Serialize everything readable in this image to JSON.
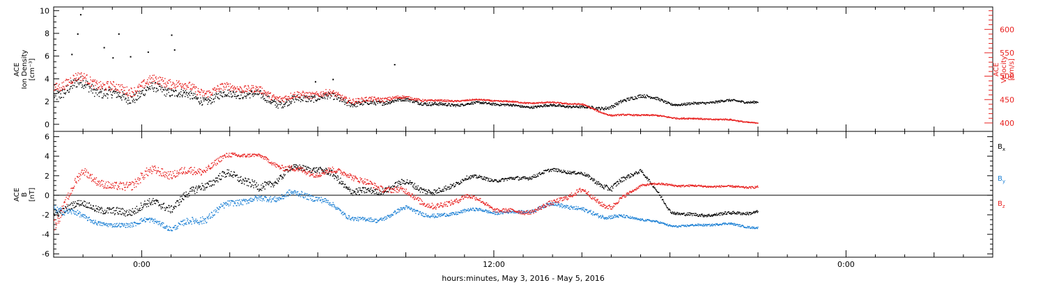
{
  "colors": {
    "black": "#000000",
    "red": "#e8201e",
    "blue": "#1a7fd4"
  },
  "chart_data": [
    {
      "type": "scatter",
      "panel": "top",
      "ylabel_left": [
        "ACE",
        "Ion Density",
        "[cm⁻³]"
      ],
      "ylabel_right": [
        "ACE",
        "Velocity",
        "[km/s]"
      ],
      "ylim_left": [
        -0.5,
        10.2
      ],
      "ylim_right": [
        385,
        645
      ],
      "yticks_left": [
        "0",
        "2",
        "4",
        "6",
        "8",
        "10"
      ],
      "yticks_right": [
        "400",
        "450",
        "500",
        "550",
        "600"
      ],
      "x_unit": "hours since May 3, 2016 00:00",
      "xlim": [
        -3,
        29
      ],
      "series": [
        {
          "color": "black",
          "axis": "left",
          "x": [
            -3,
            -2,
            -1,
            0,
            1,
            2,
            3,
            4,
            5,
            6,
            7,
            8,
            9,
            10,
            11,
            12,
            13,
            14,
            15,
            16,
            17,
            18,
            19,
            20,
            21
          ],
          "y": [
            3.0,
            3.0,
            2.9,
            2.8,
            2.7,
            2.6,
            2.5,
            2.4,
            2.3,
            2.2,
            2.1,
            2.0,
            2.0,
            1.9,
            1.8,
            1.8,
            1.7,
            1.6,
            1.5,
            1.7,
            2.5,
            1.9,
            1.9,
            2.0,
            2.1
          ],
          "spread": [
            1.0,
            1.0,
            0.9,
            0.9,
            0.8,
            0.7,
            0.7,
            0.7,
            0.7,
            0.6,
            0.5,
            0.4,
            0.3,
            0.3,
            0.2,
            0.2,
            0.2,
            0.2,
            0.2,
            0.3,
            0.3,
            0.2,
            0.2,
            0.2,
            0.2
          ],
          "outliers": [
            [
              -2.1,
              9.7
            ],
            [
              -2.2,
              8.0
            ],
            [
              -2.4,
              6.2
            ],
            [
              -0.8,
              8.0
            ],
            [
              -1.3,
              6.8
            ],
            [
              -0.4,
              6.0
            ],
            [
              0.2,
              6.4
            ],
            [
              1.0,
              7.9
            ],
            [
              1.1,
              6.6
            ],
            [
              -1.0,
              5.9
            ],
            [
              8.6,
              5.3
            ],
            [
              6.5,
              4.0
            ],
            [
              5.9,
              3.8
            ]
          ]
        },
        {
          "color": "red",
          "axis": "right",
          "x": [
            -3,
            -2,
            -1,
            0,
            1,
            2,
            3,
            4,
            5,
            6,
            7,
            8,
            9,
            10,
            11,
            12,
            13,
            14,
            15,
            16,
            17,
            18,
            19,
            20,
            21
          ],
          "y": [
            485,
            485,
            482,
            480,
            482,
            478,
            472,
            466,
            462,
            458,
            455,
            453,
            451,
            450,
            449,
            448,
            446,
            443,
            440,
            418,
            417,
            414,
            410,
            406,
            402
          ],
          "spread": [
            20,
            20,
            20,
            20,
            20,
            18,
            16,
            15,
            15,
            14,
            12,
            10,
            6,
            4,
            3,
            3,
            3,
            3,
            3,
            3,
            3,
            3,
            3,
            3,
            2
          ]
        }
      ]
    },
    {
      "type": "scatter",
      "panel": "bottom",
      "ylabel_left": [
        "ACE",
        "B",
        "[nT]"
      ],
      "ylim": [
        -6.2,
        6.4
      ],
      "yticks": [
        "-6",
        "-4",
        "-2",
        "0",
        "2",
        "4",
        "6"
      ],
      "xlim": [
        -3,
        29
      ],
      "xticks": [
        0,
        12,
        24
      ],
      "xtick_labels": [
        "0:00",
        "12:00",
        "0:00"
      ],
      "xlabel": "hours:minutes, May  3, 2016 - May  5, 2016",
      "legend": [
        "Bx",
        "By",
        "Bz"
      ],
      "series": [
        {
          "name": "Bx",
          "color": "black",
          "x": [
            -3,
            -2,
            -1,
            0,
            1,
            2,
            3,
            4,
            5,
            6,
            7,
            8,
            9,
            10,
            11,
            12,
            13,
            14,
            15,
            16,
            17,
            18,
            19,
            20,
            21
          ],
          "y": [
            -1.5,
            -1.2,
            -1.5,
            -1.0,
            -1.5,
            1.5,
            2.0,
            0.5,
            3.0,
            2.5,
            1.0,
            0.5,
            1.0,
            0.5,
            1.8,
            1.5,
            2.0,
            2.5,
            2.2,
            1.0,
            2.5,
            -1.5,
            -2.0,
            -2.0,
            -1.5
          ],
          "spread": [
            0.8,
            0.6,
            0.8,
            0.8,
            0.8,
            0.8,
            0.8,
            0.8,
            0.6,
            0.6,
            0.8,
            0.6,
            0.6,
            0.6,
            0.4,
            0.3,
            0.4,
            0.3,
            0.3,
            0.6,
            0.3,
            0.3,
            0.3,
            0.3,
            0.3
          ]
        },
        {
          "name": "By",
          "color": "blue",
          "x": [
            -3,
            -2,
            -1,
            0,
            1,
            2,
            3,
            4,
            5,
            6,
            7,
            8,
            9,
            10,
            11,
            12,
            13,
            14,
            15,
            16,
            17,
            18,
            19,
            20,
            21
          ],
          "y": [
            -1.0,
            -2.5,
            -3.0,
            -2.5,
            -3.5,
            -2.0,
            -1.0,
            -0.5,
            0.5,
            -0.5,
            -2.0,
            -2.5,
            -1.5,
            -2.0,
            -1.5,
            -1.8,
            -1.5,
            -1.0,
            -1.5,
            -2.0,
            -2.5,
            -3.0,
            -3.0,
            -3.0,
            -3.2
          ],
          "spread": [
            0.8,
            0.5,
            0.4,
            0.5,
            0.5,
            0.8,
            0.6,
            0.6,
            0.6,
            0.6,
            0.4,
            0.4,
            0.4,
            0.4,
            0.3,
            0.3,
            0.3,
            0.4,
            0.4,
            0.4,
            0.2,
            0.2,
            0.2,
            0.2,
            0.2
          ]
        },
        {
          "name": "Bz",
          "color": "red",
          "x": [
            -3,
            -2,
            -1,
            0,
            1,
            2,
            3,
            4,
            5,
            6,
            7,
            8,
            9,
            10,
            11,
            12,
            13,
            14,
            15,
            16,
            17,
            18,
            19,
            20,
            21
          ],
          "y": [
            -2.5,
            2.0,
            1.0,
            2.0,
            2.0,
            3.0,
            4.0,
            4.0,
            3.0,
            2.0,
            2.5,
            1.0,
            0.0,
            -1.0,
            0.0,
            -1.5,
            -1.5,
            -1.0,
            0.5,
            -1.0,
            1.0,
            1.2,
            1.0,
            0.8,
            1.0
          ],
          "spread": [
            1.2,
            0.8,
            0.8,
            1.0,
            0.8,
            0.8,
            0.5,
            0.3,
            0.6,
            0.6,
            0.6,
            0.6,
            0.6,
            0.6,
            0.5,
            0.4,
            0.4,
            0.5,
            0.5,
            0.5,
            0.2,
            0.2,
            0.2,
            0.2,
            0.2
          ]
        }
      ]
    }
  ]
}
